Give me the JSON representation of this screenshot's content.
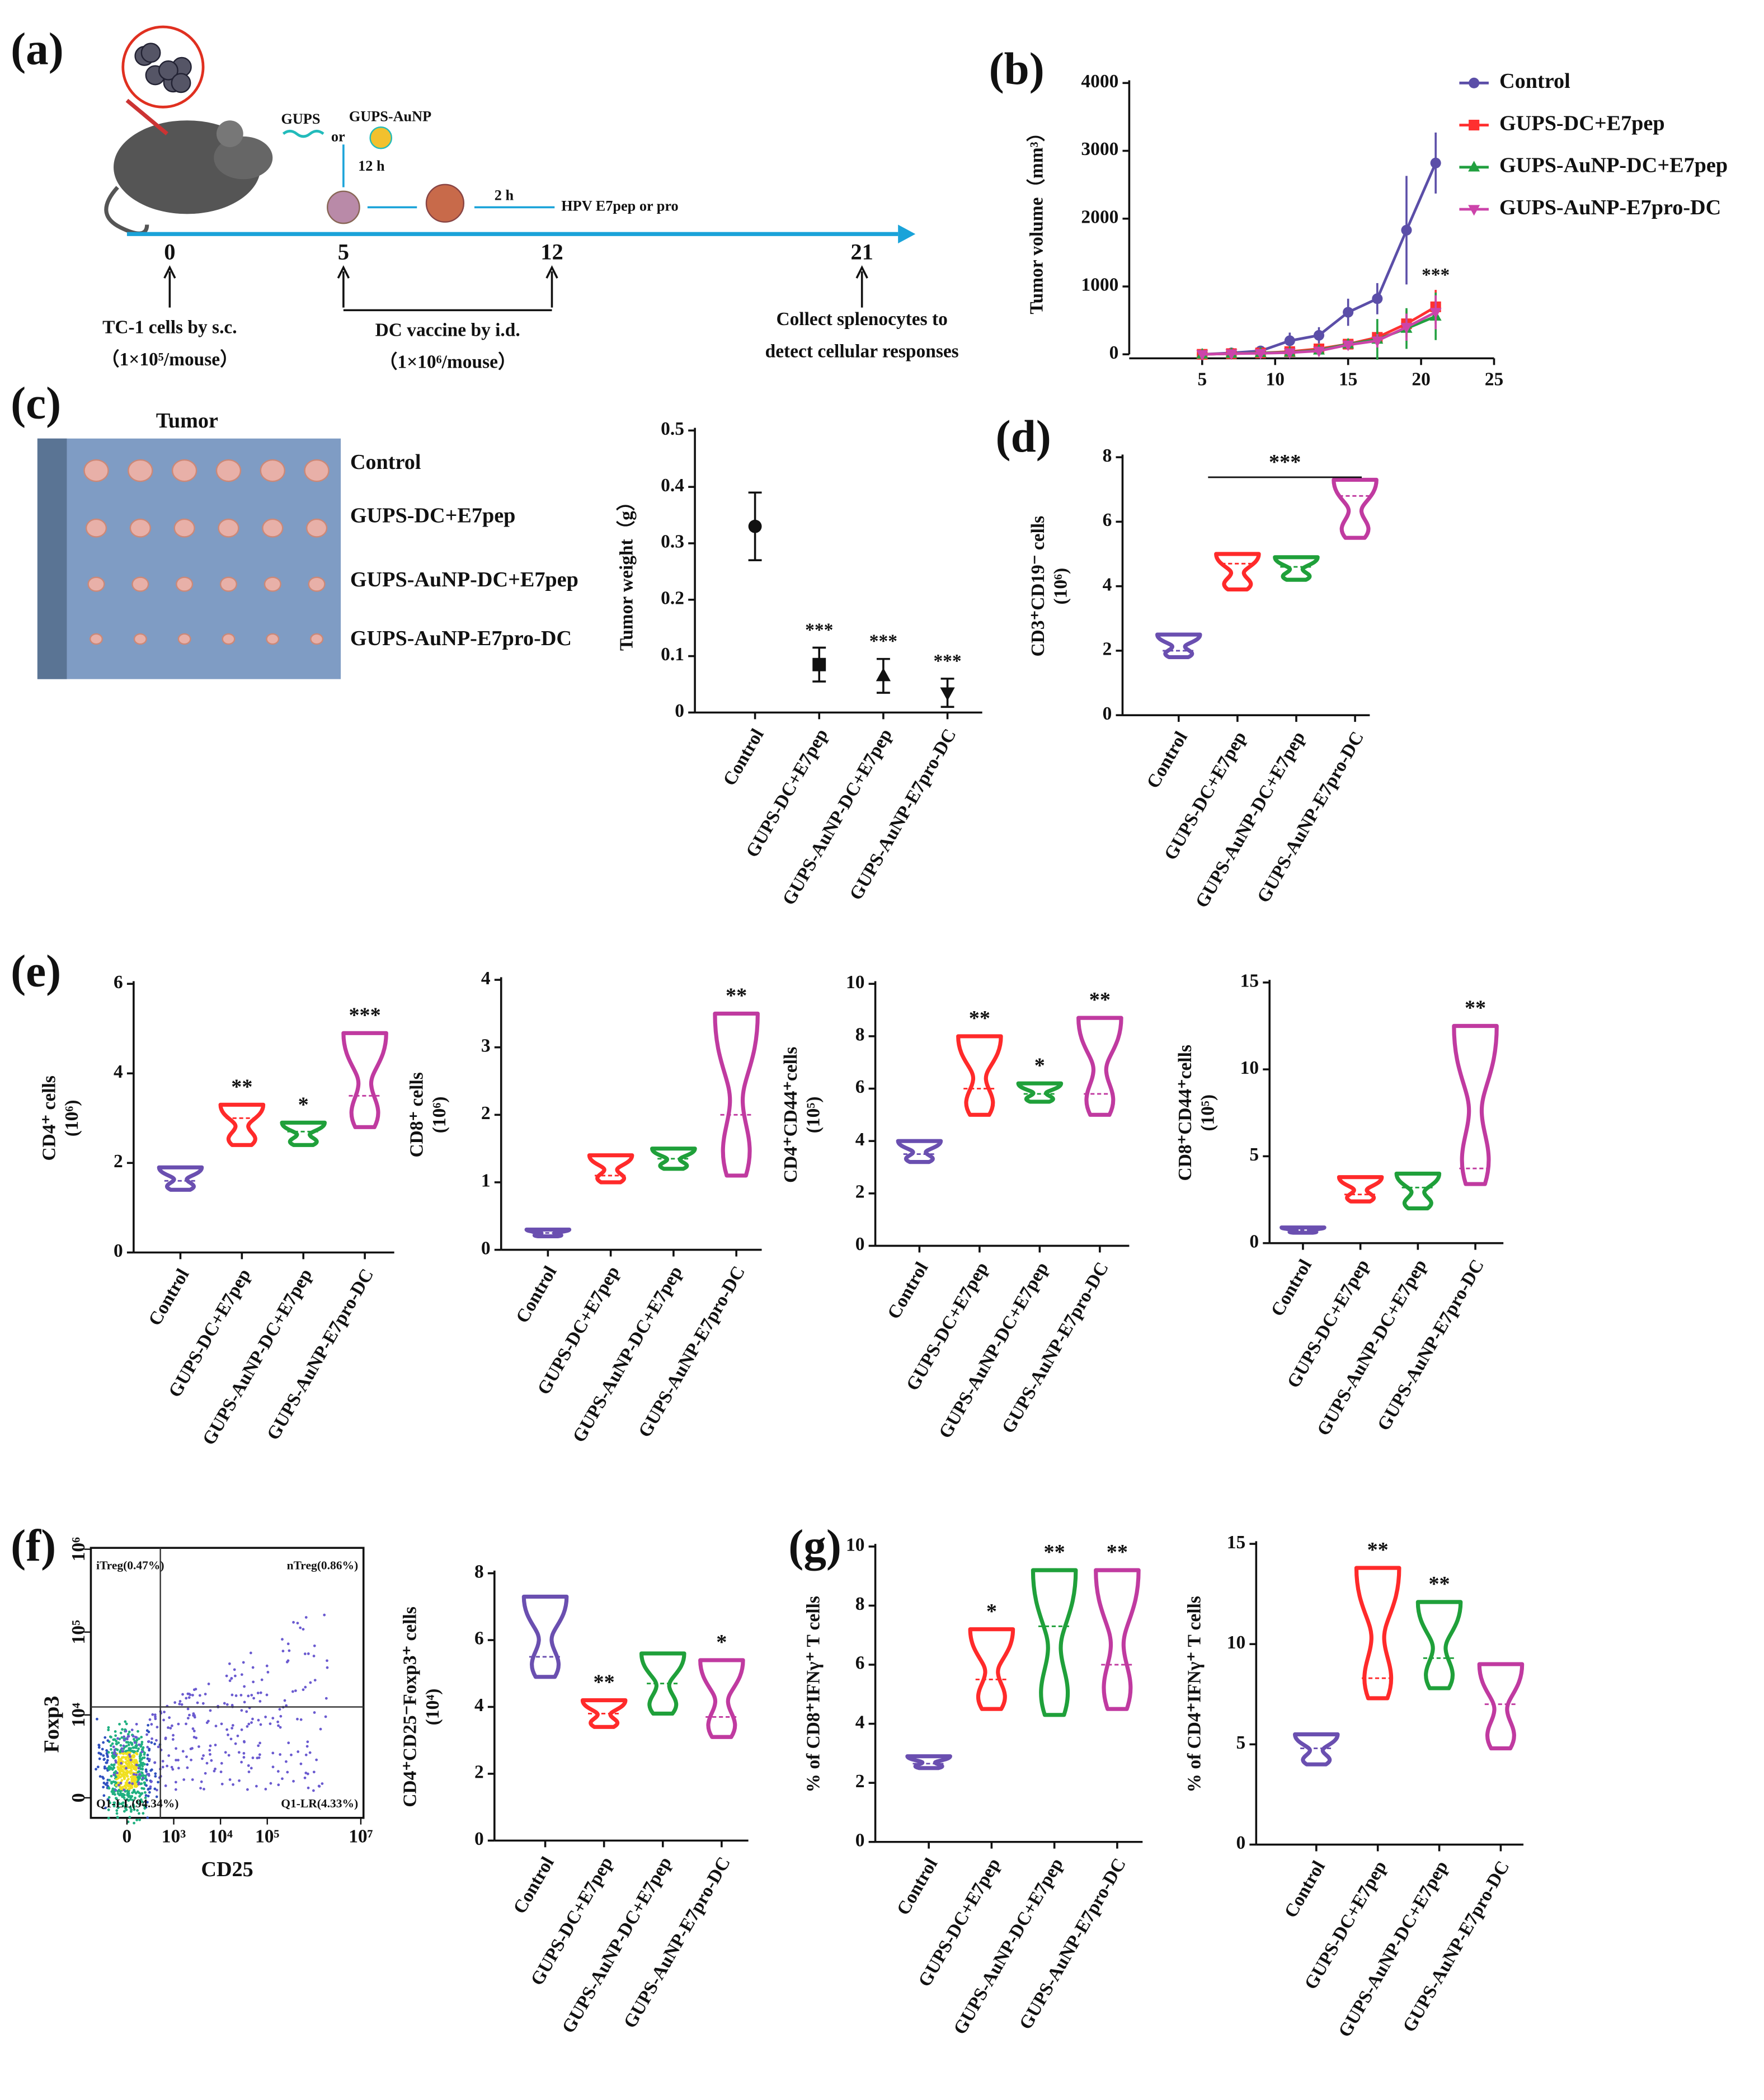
{
  "schematic": {
    "panel_label": "(a)",
    "materials": [
      "GUPS",
      "or",
      "GUPS-AuNP"
    ],
    "incubation": "12 h",
    "pulse": "2 h",
    "antigen": "HPV E7pep or pro",
    "days": [
      "0",
      "5",
      "12",
      "21"
    ],
    "steps": [
      [
        "TC-1 cells by s.c.",
        "（1×10⁵/mouse）"
      ],
      [
        "DC vaccine by i.d.",
        "（1×10⁶/mouse）"
      ],
      [
        "Collect splenocytes to",
        "detect cellular responses"
      ]
    ]
  },
  "photo": {
    "panel_label": "(c)",
    "title": "Tumor",
    "rows": [
      "Control",
      "GUPS-DC+E7pep",
      "GUPS-AuNP-DC+E7pep",
      "GUPS-AuNP-E7pro-DC"
    ]
  },
  "chart_data": [
    {
      "type": "line",
      "panel_label": "(b)",
      "ylabel": [
        "Tumor volume（mm³）"
      ],
      "x": [
        5,
        7,
        9,
        11,
        13,
        15,
        17,
        19,
        21
      ],
      "xlim": [
        0,
        25
      ],
      "xticks": [
        5,
        10,
        15,
        20,
        25
      ],
      "ylim": [
        0,
        4000
      ],
      "yticks": [
        0,
        1000,
        2000,
        3000,
        4000
      ],
      "annotation": "***",
      "series": [
        {
          "name": "Control",
          "color": "#5b4ea8",
          "marker": "circle",
          "values": [
            0,
            20,
            50,
            200,
            280,
            620,
            820,
            1830,
            2820
          ],
          "errors": [
            0,
            20,
            30,
            120,
            120,
            200,
            230,
            800,
            450
          ]
        },
        {
          "name": "GUPS-DC+E7pep",
          "color": "#ff3030",
          "marker": "square",
          "values": [
            0,
            10,
            20,
            40,
            80,
            150,
            250,
            450,
            700
          ],
          "errors": [
            0,
            10,
            15,
            30,
            40,
            60,
            100,
            200,
            250
          ]
        },
        {
          "name": "GUPS-AuNP-DC+E7pep",
          "color": "#22a040",
          "marker": "triangle",
          "values": [
            0,
            10,
            20,
            30,
            60,
            150,
            220,
            380,
            560
          ],
          "errors": [
            0,
            10,
            15,
            25,
            40,
            80,
            300,
            300,
            350
          ]
        },
        {
          "name": "GUPS-AuNP-E7pro-DC",
          "color": "#cc44aa",
          "marker": "triangle-down",
          "values": [
            0,
            10,
            15,
            25,
            50,
            140,
            200,
            400,
            620
          ],
          "errors": [
            0,
            10,
            10,
            20,
            30,
            60,
            100,
            200,
            250
          ]
        }
      ]
    },
    {
      "type": "errorscatter",
      "ylabel": [
        "Tumor weight（g）"
      ],
      "categories": [
        "Control",
        "GUPS-DC+E7pep",
        "GUPS-AuNP-DC+E7pep",
        "GUPS-AuNP-E7pro-DC"
      ],
      "values": [
        0.33,
        0.085,
        0.065,
        0.035
      ],
      "errors": [
        0.06,
        0.03,
        0.03,
        0.025
      ],
      "markers": [
        "circle",
        "square",
        "triangle",
        "triangle-down"
      ],
      "color": "#111111",
      "ylim": [
        0,
        0.5
      ],
      "yticks": [
        0,
        0.1,
        0.2,
        0.3,
        0.4,
        0.5
      ],
      "annotations": [
        null,
        "***",
        "***",
        "***"
      ]
    },
    {
      "type": "violin",
      "panel_label": "(d)",
      "ylabel": [
        "CD3⁺CD19⁻ cells",
        "(10⁶)"
      ],
      "categories": [
        "Control",
        "GUPS-DC+E7pep",
        "GUPS-AuNP-DC+E7pep",
        "GUPS-AuNP-E7pro-DC"
      ],
      "colors": [
        "#6a4fb0",
        "#ff2a2a",
        "#1fa03a",
        "#c03aa0"
      ],
      "min": [
        1.8,
        3.9,
        4.2,
        5.5
      ],
      "max": [
        2.5,
        5.0,
        4.9,
        7.3
      ],
      "median": [
        2.0,
        4.7,
        4.6,
        6.8
      ],
      "ylim": [
        0,
        8
      ],
      "yticks": [
        0,
        2,
        4,
        6,
        8
      ],
      "annotation": "***"
    },
    {
      "type": "violin",
      "panel_label": "(e)",
      "ylabel": [
        "CD4⁺ cells",
        "(10⁶)"
      ],
      "categories": [
        "Control",
        "GUPS-DC+E7pep",
        "GUPS-AuNP-DC+E7pep",
        "GUPS-AuNP-E7pro-DC"
      ],
      "colors": [
        "#6a4fb0",
        "#ff2a2a",
        "#1fa03a",
        "#c03aa0"
      ],
      "min": [
        1.4,
        2.4,
        2.4,
        2.8
      ],
      "max": [
        1.9,
        3.3,
        2.9,
        4.9
      ],
      "median": [
        1.6,
        3.0,
        2.7,
        3.5
      ],
      "ylim": [
        0,
        6
      ],
      "yticks": [
        0,
        2,
        4,
        6
      ],
      "annotations": [
        null,
        "**",
        "*",
        "***"
      ]
    },
    {
      "type": "violin",
      "ylabel": [
        "CD8⁺ cells",
        "(10⁶)"
      ],
      "categories": [
        "Control",
        "GUPS-DC+E7pep",
        "GUPS-AuNP-DC+E7pep",
        "GUPS-AuNP-E7pro-DC"
      ],
      "colors": [
        "#6a4fb0",
        "#ff2a2a",
        "#1fa03a",
        "#c03aa0"
      ],
      "min": [
        0.2,
        1.0,
        1.2,
        1.1
      ],
      "max": [
        0.3,
        1.4,
        1.5,
        3.5
      ],
      "median": [
        0.25,
        1.1,
        1.35,
        2.0
      ],
      "ylim": [
        0,
        4
      ],
      "yticks": [
        0,
        1,
        2,
        3,
        4
      ],
      "annotations": [
        null,
        null,
        null,
        "**"
      ]
    },
    {
      "type": "violin",
      "ylabel": [
        "CD4⁺CD44⁺cells",
        "(10⁵)"
      ],
      "categories": [
        "Control",
        "GUPS-DC+E7pep",
        "GUPS-AuNP-DC+E7pep",
        "GUPS-AuNP-E7pro-DC"
      ],
      "colors": [
        "#6a4fb0",
        "#ff2a2a",
        "#1fa03a",
        "#c03aa0"
      ],
      "min": [
        3.2,
        5.0,
        5.5,
        5.0
      ],
      "max": [
        4.0,
        8.0,
        6.2,
        8.7
      ],
      "median": [
        3.5,
        6.0,
        5.8,
        5.8
      ],
      "ylim": [
        0,
        10
      ],
      "yticks": [
        0,
        2,
        4,
        6,
        8,
        10
      ],
      "annotations": [
        null,
        "**",
        "*",
        "**"
      ]
    },
    {
      "type": "violin",
      "ylabel": [
        "CD8⁺CD44⁺cells",
        "(10⁵)"
      ],
      "categories": [
        "Control",
        "GUPS-DC+E7pep",
        "GUPS-AuNP-DC+E7pep",
        "GUPS-AuNP-E7pro-DC"
      ],
      "colors": [
        "#6a4fb0",
        "#ff2a2a",
        "#1fa03a",
        "#c03aa0"
      ],
      "min": [
        0.6,
        2.4,
        2.0,
        3.4
      ],
      "max": [
        0.9,
        3.8,
        4.0,
        12.5
      ],
      "median": [
        0.75,
        2.8,
        3.2,
        4.3
      ],
      "ylim": [
        0,
        15
      ],
      "yticks": [
        0,
        5,
        10,
        15
      ],
      "annotations": [
        null,
        null,
        null,
        "**"
      ]
    },
    {
      "type": "flow",
      "panel_label": "(f)",
      "xlabel": "CD25",
      "ylabel": "Foxp3",
      "xticks": [
        0,
        {
          "value": 1000,
          "label": "10³"
        },
        {
          "value": 10000,
          "label": "10⁴"
        },
        {
          "value": 100000,
          "label": "10⁵"
        },
        {
          "value": 10000000,
          "label": "10⁷"
        }
      ],
      "yticks": [
        0,
        {
          "value": 10000,
          "label": "10⁴"
        },
        {
          "value": 100000,
          "label": "10⁵"
        },
        {
          "value": 1000000,
          "label": "10⁶"
        }
      ],
      "quadrant_labels": [
        "iTreg(0.47%)",
        "nTreg(0.86%)",
        "Q1-LL(94.34%)",
        "Q1-LR(4.33%)"
      ]
    },
    {
      "type": "violin",
      "ylabel": [
        "CD4⁺CD25⁻Foxp3⁺ cells",
        "(10⁴)"
      ],
      "categories": [
        "Control",
        "GUPS-DC+E7pep",
        "GUPS-AuNP-DC+E7pep",
        "GUPS-AuNP-E7pro-DC"
      ],
      "colors": [
        "#6a4fb0",
        "#ff2a2a",
        "#1fa03a",
        "#c03aa0"
      ],
      "min": [
        4.9,
        3.4,
        3.8,
        3.1
      ],
      "max": [
        7.3,
        4.2,
        5.6,
        5.4
      ],
      "median": [
        5.5,
        3.8,
        4.7,
        3.7
      ],
      "ylim": [
        0,
        8
      ],
      "yticks": [
        0,
        2,
        4,
        6,
        8
      ],
      "annotations": [
        null,
        "**",
        null,
        "*"
      ]
    },
    {
      "type": "violin",
      "panel_label": "(g)",
      "ylabel": [
        "% of CD8⁺IFNγ⁺ T cells"
      ],
      "categories": [
        "Control",
        "GUPS-DC+E7pep",
        "GUPS-AuNP-DC+E7pep",
        "GUPS-AuNP-E7pro-DC"
      ],
      "colors": [
        "#6a4fb0",
        "#ff2a2a",
        "#1fa03a",
        "#c03aa0"
      ],
      "min": [
        2.5,
        4.5,
        4.3,
        4.5
      ],
      "max": [
        2.9,
        7.2,
        9.2,
        9.2
      ],
      "median": [
        2.65,
        5.5,
        7.3,
        6.0
      ],
      "ylim": [
        0,
        10
      ],
      "yticks": [
        0,
        2,
        4,
        6,
        8,
        10
      ],
      "annotations": [
        null,
        "*",
        "**",
        "**"
      ]
    },
    {
      "type": "violin",
      "ylabel": [
        "% of CD4⁺IFNγ⁺ T cells"
      ],
      "categories": [
        "Control",
        "GUPS-DC+E7pep",
        "GUPS-AuNP-DC+E7pep",
        "GUPS-AuNP-E7pro-DC"
      ],
      "colors": [
        "#6a4fb0",
        "#ff2a2a",
        "#1fa03a",
        "#c03aa0"
      ],
      "min": [
        4.0,
        7.3,
        7.8,
        4.8
      ],
      "max": [
        5.5,
        13.8,
        12.1,
        9.0
      ],
      "median": [
        4.8,
        8.3,
        9.3,
        7.0
      ],
      "ylim": [
        0,
        15
      ],
      "yticks": [
        0,
        5,
        10,
        15
      ],
      "annotations": [
        null,
        "**",
        "**",
        null
      ]
    }
  ]
}
